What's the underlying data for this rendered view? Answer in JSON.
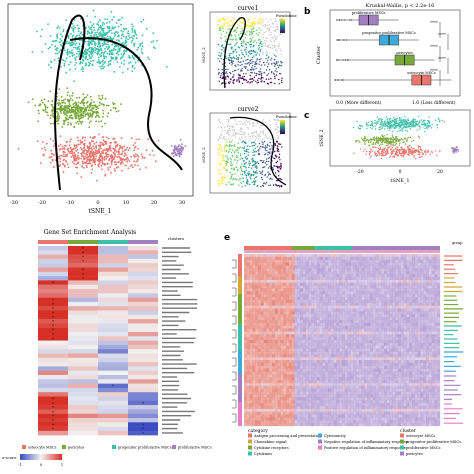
{
  "panels": {
    "b": {
      "letter": "b"
    },
    "c": {
      "letter": "c"
    },
    "e": {
      "letter": "e"
    }
  },
  "chart_data": [
    {
      "type": "scatter",
      "panel": "a",
      "xlabel": "tSNE_1",
      "ylabel": "",
      "xticks": [
        "-30",
        "-20",
        "-10",
        "0",
        "10",
        "20",
        "30"
      ],
      "yticks": [],
      "xlim": [
        -35,
        32
      ],
      "clusters": [
        {
          "name": "osteocyte MSCs",
          "color": "#3fbfaa"
        },
        {
          "name": "progenitor proliferative MSCs",
          "color": "#79a83a"
        },
        {
          "name": "pericytes",
          "color": "#e8766d"
        },
        {
          "name": "proliferative MSCs",
          "color": "#a27fc0"
        }
      ]
    },
    {
      "type": "scatter",
      "panel": "a-curve1",
      "title": "curve1",
      "xlabel": "",
      "ylabel": "tSNE_2",
      "legend": "Pseudotime"
    },
    {
      "type": "scatter",
      "panel": "a-curve2",
      "title": "curve2",
      "xlabel": "",
      "ylabel": "tSNE_2",
      "legend": "Pseudotime"
    },
    {
      "type": "box",
      "panel": "b",
      "title": "Kruskal-Wallis, p < 2.2e-16",
      "ylabel": "Cluster",
      "xlabels": [
        "0.0 (More different)",
        "1.0 (Less different)"
      ],
      "categories": [
        "proliferative MSCs",
        "progenitor proliferative MSCs",
        "pericytes",
        "osteocyte MSCs"
      ],
      "colors": [
        "#a27fc0",
        "#3fa9d8",
        "#79a83a",
        "#e8766d"
      ],
      "medians": [
        0.28,
        0.45,
        0.58,
        0.72
      ],
      "significance": [
        "****",
        "****",
        "****",
        "****",
        "****"
      ]
    },
    {
      "type": "scatter",
      "panel": "c",
      "xlabel": "tSNE_1",
      "ylabel": "tSNE_2",
      "xticks": [
        "-20",
        "0",
        "20"
      ]
    },
    {
      "type": "heatmap",
      "panel": "d",
      "title": "Gene Set Enrichment Analysis",
      "legend_title": "clusters",
      "columns": [
        "osteocyte MSCs",
        "pericytes",
        "progenitor proliferative MSCs",
        "proliferative MSCs"
      ],
      "column_colors": [
        "#e8766d",
        "#79a83a",
        "#3fbfaa",
        "#a27fc0"
      ],
      "color_scale_label": "z-score",
      "color_scale_ticks": [
        "-1",
        "0",
        "1"
      ]
    },
    {
      "type": "heatmap",
      "panel": "e",
      "legend_category_title": "category",
      "legend_cluster_title": "cluster",
      "legend_group_title": "group",
      "categories": [
        {
          "name": "Antigen processing and presentation",
          "color": "#e8766d"
        },
        {
          "name": "Chemokine signal",
          "color": "#d0a83a"
        },
        {
          "name": "Cytokine receptors",
          "color": "#79a83a"
        },
        {
          "name": "Cytokines",
          "color": "#3fbfaa"
        },
        {
          "name": "Cytotoxicity",
          "color": "#3fa9d8"
        },
        {
          "name": "Negative regulation of inflammatory response",
          "color": "#a27fc0"
        },
        {
          "name": "Positive regulation of inflammatory response",
          "color": "#e77cc8"
        }
      ],
      "clusters": [
        {
          "name": "osteocyte MSCs",
          "color": "#e8766d"
        },
        {
          "name": "progenitor proliferative MSCs",
          "color": "#79a83a"
        },
        {
          "name": "proliferative MSCs",
          "color": "#3fbfaa"
        },
        {
          "name": "pericytes",
          "color": "#a27fc0"
        }
      ]
    }
  ],
  "labels": {
    "a_xlabel": "tSNE_1",
    "a_ylabel": "",
    "curve1": "curve1",
    "curve2": "curve2",
    "pseudotime": "Pseudotime",
    "tsne2": "tSNE_2",
    "tsne1": "tSNE_1",
    "kw": "Kruskal-Wallis, p < 2.2e-16",
    "cluster": "Cluster",
    "more_diff": "0.0 (More different)",
    "less_diff": "1.0 (Less different)",
    "gsea_title": "Gene Set Enrichment Analysis",
    "clusters_title": "clusters",
    "zscore": "z-score",
    "category": "category",
    "cluster_e": "cluster",
    "group": "group"
  }
}
